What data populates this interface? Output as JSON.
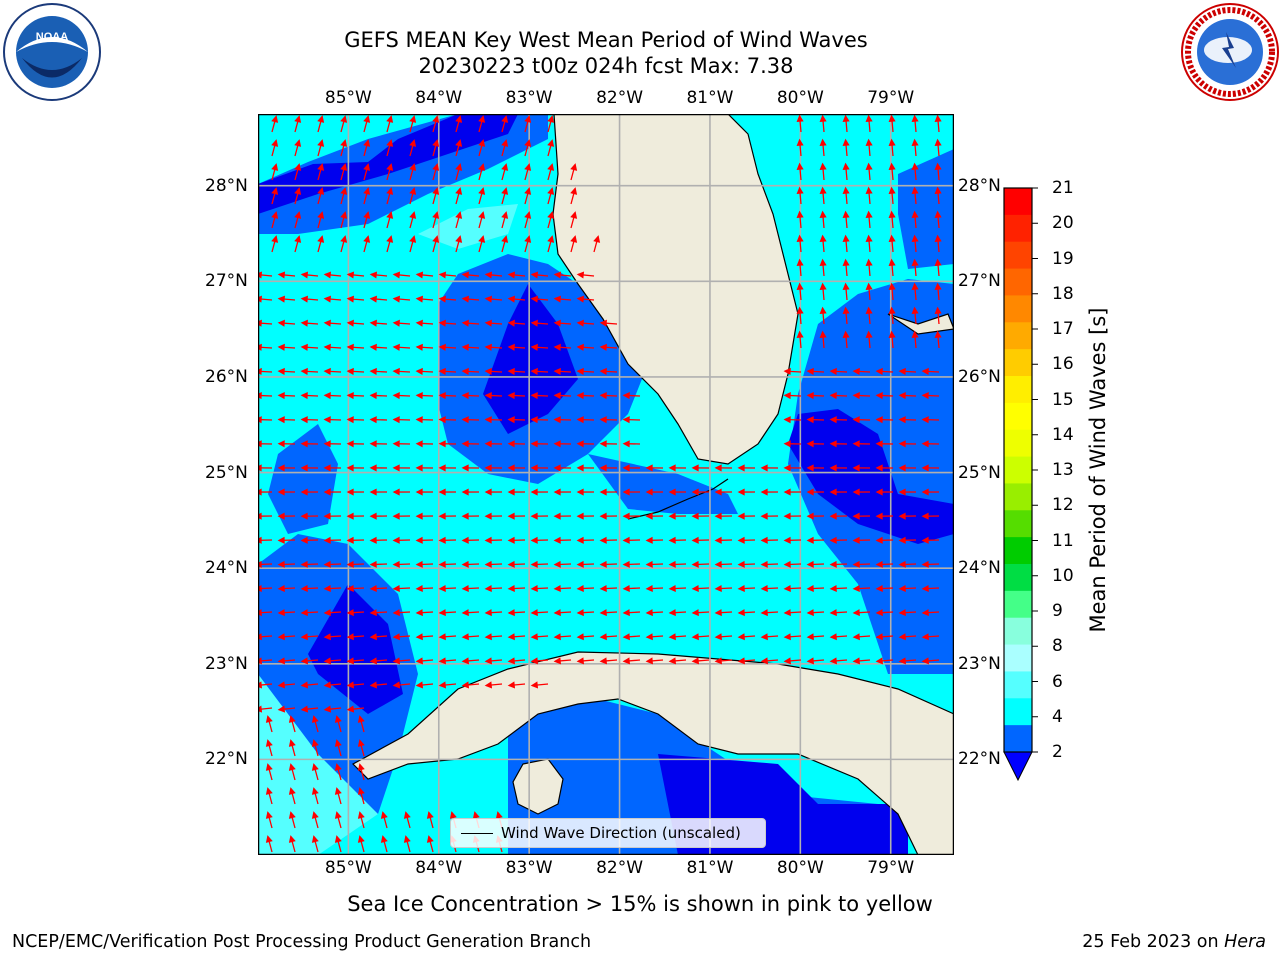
{
  "title": {
    "line1": "GEFS MEAN Key West Mean Period of Wind Waves",
    "line2": "20230223 t00z 024h fcst   Max: 7.38"
  },
  "logos": {
    "left": "NOAA",
    "left_ring_text": "NATIONAL OCEANIC AND ATMOSPHERIC ADMINISTRATION · U.S. DEPARTMENT OF COMMERCE",
    "right_ring_text": "NATIONAL WEATHER SERVICE"
  },
  "map": {
    "lon_labels": [
      "85°W",
      "84°W",
      "83°W",
      "82°W",
      "81°W",
      "80°W",
      "79°W"
    ],
    "lat_labels": [
      "28°N",
      "27°N",
      "26°N",
      "25°N",
      "24°N",
      "23°N",
      "22°N"
    ],
    "lon_range": [
      -86.0,
      -78.3
    ],
    "lat_range": [
      21.0,
      28.75
    ],
    "legend": "Wind Wave Direction (unscaled)",
    "colors": {
      "land": "#efecdc",
      "level_2_4": "#0066ff",
      "level_4_6": "#00ffff",
      "level_6_7": "#55ffff",
      "below_2": "#0000ee",
      "arrow": "#ff0000"
    }
  },
  "colorbar": {
    "title": "Mean Period of Wind Waves [s]",
    "ticks": [
      "21",
      "20",
      "19",
      "18",
      "17",
      "16",
      "15",
      "14",
      "13",
      "12",
      "11",
      "10",
      "9",
      "8",
      "6",
      "4",
      "2"
    ],
    "colors": [
      "#ff0000",
      "#ff2200",
      "#ff4400",
      "#ff6600",
      "#ff8800",
      "#ffaa00",
      "#ffcc00",
      "#ffee00",
      "#ffff00",
      "#eeff00",
      "#ccff00",
      "#99ee00",
      "#55dd00",
      "#00cc00",
      "#00dd44",
      "#44ff88",
      "#88ffdd",
      "#aaffff",
      "#55ffff",
      "#00ffff",
      "#0066ff",
      "#0000ff"
    ],
    "under_color": "#0000ff"
  },
  "bottom_note": "Sea Ice Concentration > 15% is shown in pink to yellow",
  "footer": {
    "left": "NCEP/EMC/Verification Post Processing Product Generation Branch",
    "right_date": "25 Feb 2023 on ",
    "right_host": "Hera"
  }
}
